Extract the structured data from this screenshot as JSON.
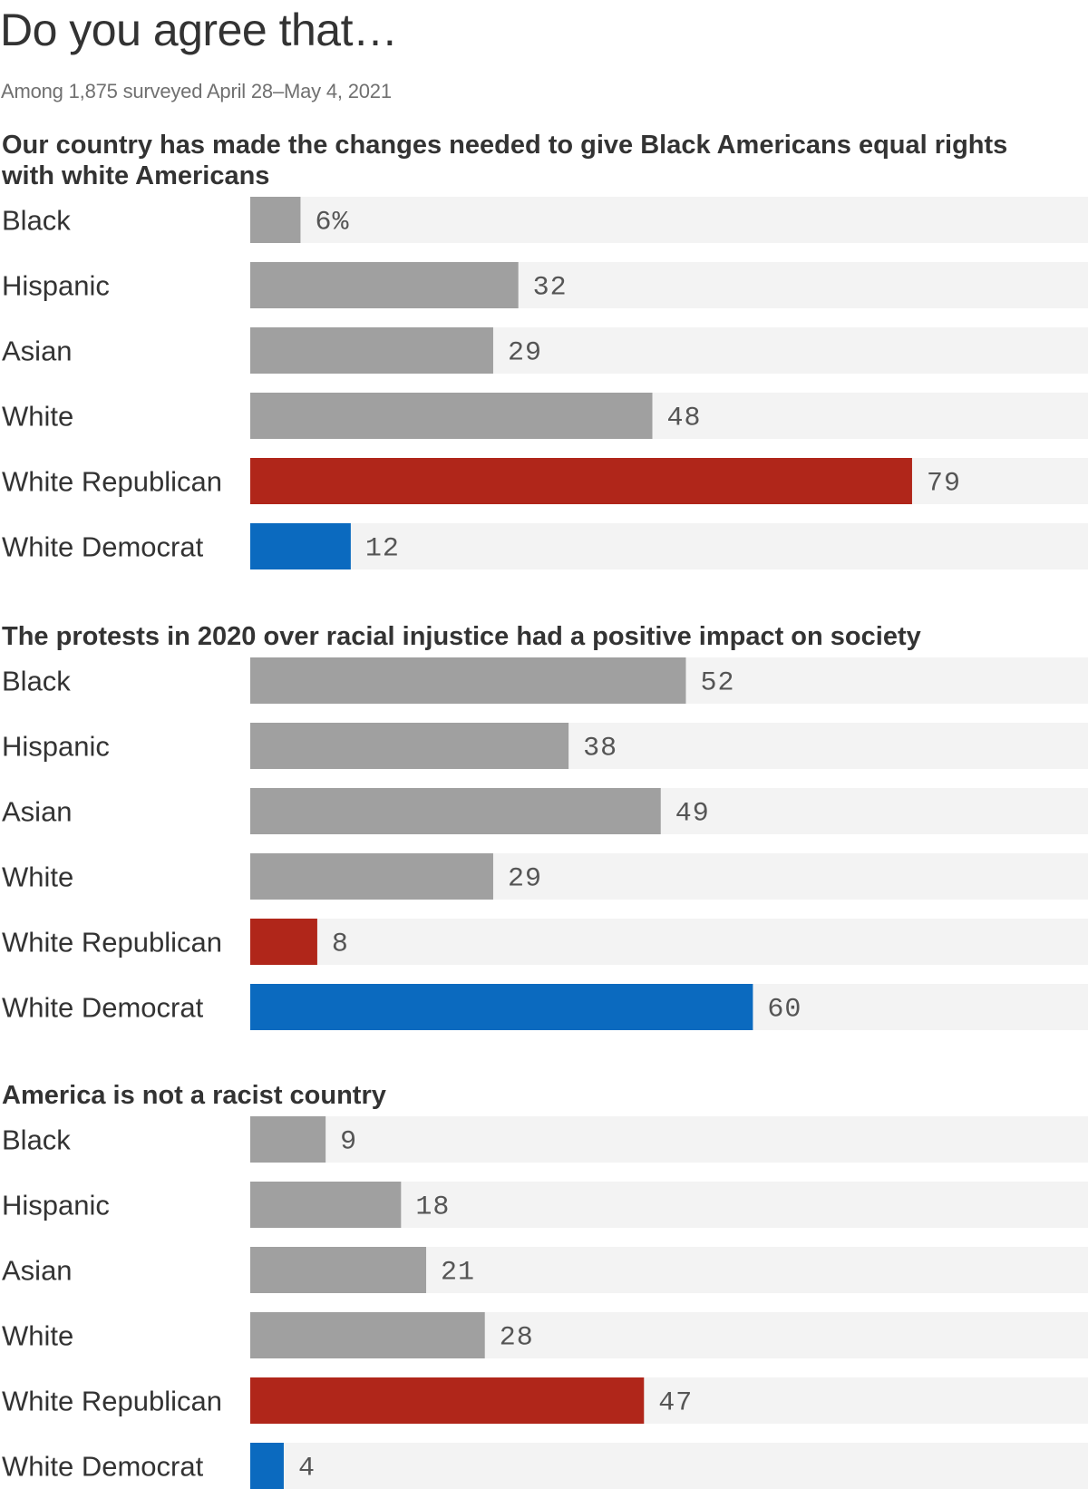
{
  "title": "Do you agree that…",
  "subtitle": "Among 1,875 surveyed April 28–May 4, 2021",
  "colors": {
    "default": "#a0a0a0",
    "republican": "#b0261a",
    "democrat": "#0b6abf",
    "track": "#f3f3f3"
  },
  "chart_data": [
    {
      "type": "bar",
      "orientation": "horizontal",
      "title": "Our country has made the changes needed to give Black Americans equal rights with white Americans",
      "title_lines": [
        "Our country has made the changes needed to give Black Americans equal rights",
        "with white Americans"
      ],
      "categories": [
        "Black",
        "Hispanic",
        "Asian",
        "White",
        "White Republican",
        "White Democrat"
      ],
      "values": [
        6,
        32,
        29,
        48,
        79,
        12
      ],
      "value_labels": [
        "6%",
        "32",
        "29",
        "48",
        "79",
        "12"
      ],
      "bar_colors": [
        "default",
        "default",
        "default",
        "default",
        "republican",
        "democrat"
      ],
      "xlim": [
        0,
        100
      ],
      "grid": false
    },
    {
      "type": "bar",
      "orientation": "horizontal",
      "title": "The protests in 2020 over racial injustice had a positive impact on society",
      "title_lines": [
        "The protests in 2020 over racial injustice had a positive impact on society"
      ],
      "categories": [
        "Black",
        "Hispanic",
        "Asian",
        "White",
        "White Republican",
        "White Democrat"
      ],
      "values": [
        52,
        38,
        49,
        29,
        8,
        60
      ],
      "value_labels": [
        "52",
        "38",
        "49",
        "29",
        "8",
        "60"
      ],
      "bar_colors": [
        "default",
        "default",
        "default",
        "default",
        "republican",
        "democrat"
      ],
      "xlim": [
        0,
        100
      ],
      "grid": false
    },
    {
      "type": "bar",
      "orientation": "horizontal",
      "title": "America is not a racist country",
      "title_lines": [
        "America is not a racist country"
      ],
      "categories": [
        "Black",
        "Hispanic",
        "Asian",
        "White",
        "White Republican",
        "White Democrat"
      ],
      "values": [
        9,
        18,
        21,
        28,
        47,
        4
      ],
      "value_labels": [
        "9",
        "18",
        "21",
        "28",
        "47",
        "4"
      ],
      "bar_colors": [
        "default",
        "default",
        "default",
        "default",
        "republican",
        "democrat"
      ],
      "xlim": [
        0,
        100
      ],
      "grid": false
    }
  ]
}
